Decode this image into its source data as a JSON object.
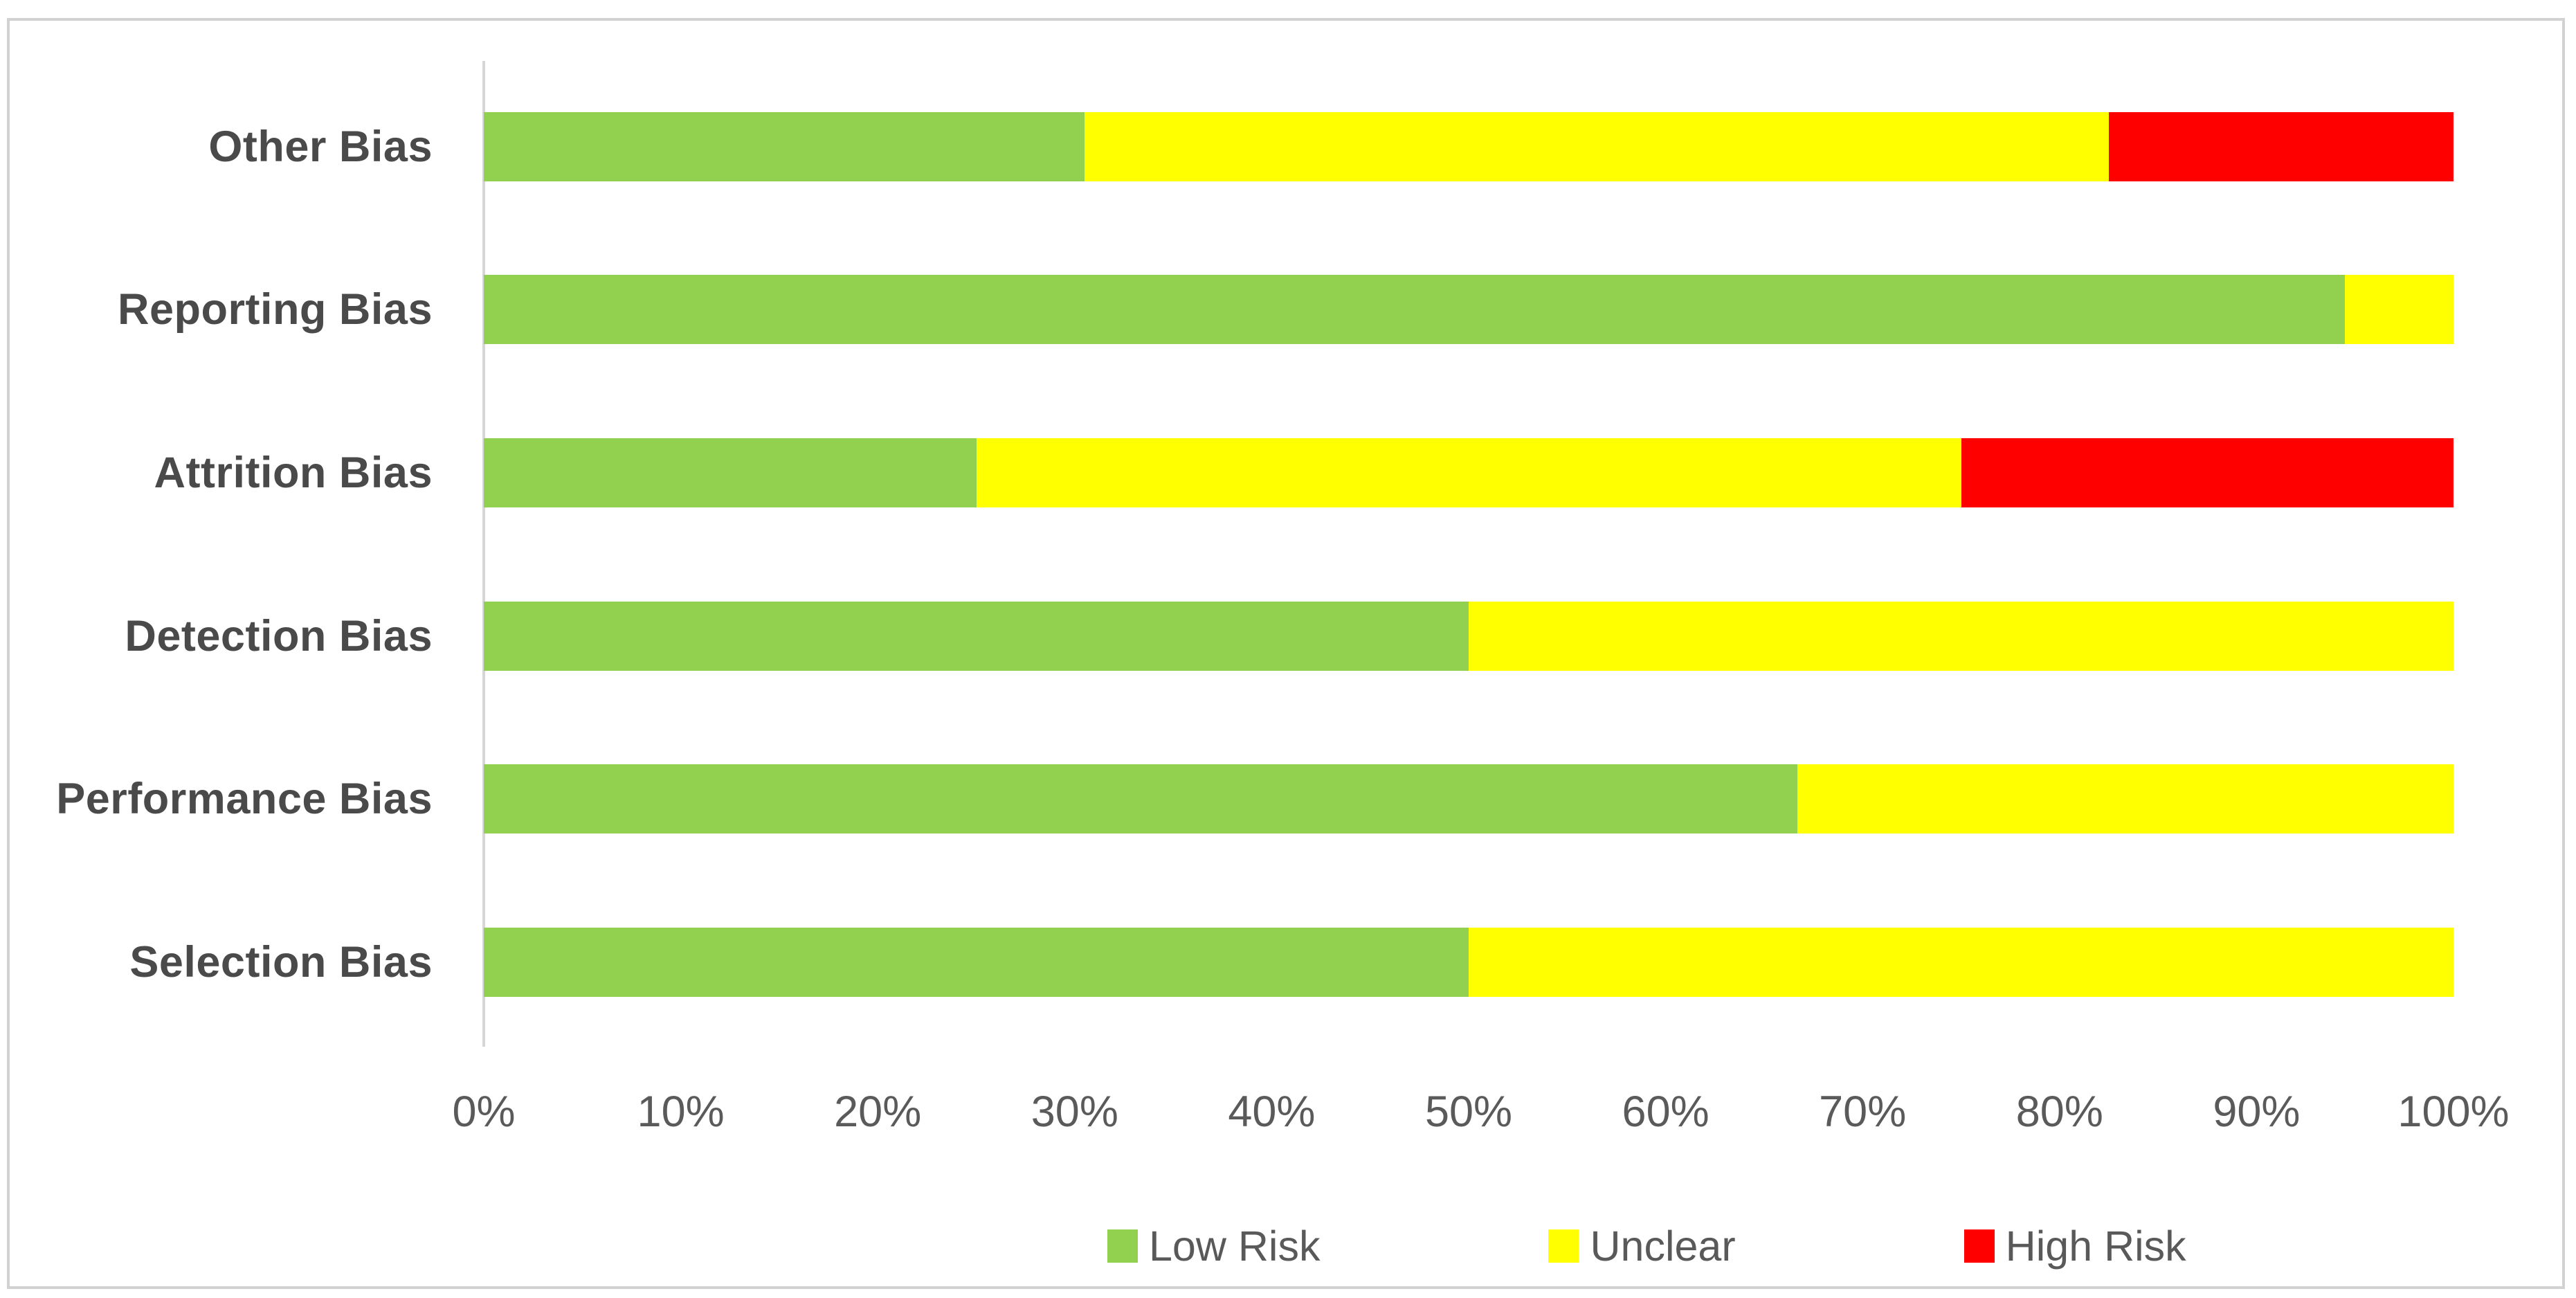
{
  "chart_data": {
    "type": "bar",
    "orientation": "horizontal",
    "stacked": true,
    "stack_unit": "percent",
    "categories": [
      "Other Bias",
      "Reporting Bias",
      "Attrition Bias",
      "Detection Bias",
      "Performance Bias",
      "Selection Bias"
    ],
    "series": [
      {
        "name": "Low Risk",
        "color": "#92d050",
        "values": [
          30.5,
          94.5,
          25,
          50,
          66.7,
          50
        ]
      },
      {
        "name": "Unclear",
        "color": "#ffff00",
        "values": [
          52.0,
          5.5,
          50,
          50,
          33.3,
          50
        ]
      },
      {
        "name": "High Risk",
        "color": "#ff0000",
        "values": [
          17.5,
          0,
          25,
          0,
          0,
          0
        ]
      }
    ],
    "x_axis": {
      "min": 0,
      "max": 100,
      "step": 10,
      "tick_labels": [
        "0%",
        "10%",
        "20%",
        "30%",
        "40%",
        "50%",
        "60%",
        "70%",
        "80%",
        "90%",
        "100%"
      ]
    },
    "legend_position": "bottom",
    "grid": false,
    "colors": {
      "background": "#ffffff",
      "frame_border": "#d2d2d2",
      "axis_line": "#d6d6d6",
      "category_text": "#4a4a4a",
      "tick_text": "#5a5a5a",
      "legend_text": "#595959"
    }
  }
}
